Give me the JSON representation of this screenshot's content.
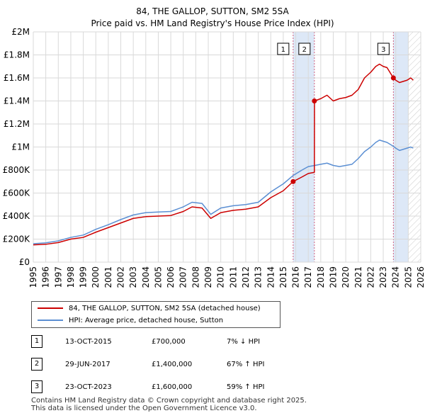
{
  "chart_data": {
    "type": "line",
    "title": "84, THE GALLOP, SUTTON, SM2 5SA",
    "subtitle": "Price paid vs. HM Land Registry's House Price Index (HPI)",
    "xlim": [
      1995,
      2026
    ],
    "ylim": [
      0,
      2000000
    ],
    "x_ticks": [
      1995,
      1996,
      1997,
      1998,
      1999,
      2000,
      2001,
      2002,
      2003,
      2004,
      2005,
      2006,
      2007,
      2008,
      2009,
      2010,
      2011,
      2012,
      2013,
      2014,
      2015,
      2016,
      2017,
      2018,
      2019,
      2020,
      2021,
      2022,
      2023,
      2024,
      2025,
      2026
    ],
    "y_ticks": [
      {
        "value": 0,
        "label": "£0"
      },
      {
        "value": 200000,
        "label": "£200K"
      },
      {
        "value": 400000,
        "label": "£400K"
      },
      {
        "value": 600000,
        "label": "£600K"
      },
      {
        "value": 800000,
        "label": "£800K"
      },
      {
        "value": 1000000,
        "label": "£1M"
      },
      {
        "value": 1200000,
        "label": "£1.2M"
      },
      {
        "value": 1400000,
        "label": "£1.4M"
      },
      {
        "value": 1600000,
        "label": "£1.6M"
      },
      {
        "value": 1800000,
        "label": "£1.8M"
      },
      {
        "value": 2000000,
        "label": "£2M"
      }
    ],
    "grid": true,
    "series": [
      {
        "name": "84, THE GALLOP, SUTTON, SM2 5SA (detached house)",
        "color": "#cc0000",
        "x": [
          1995.0,
          1996.0,
          1997.0,
          1998.0,
          1999.0,
          2000.0,
          2001.0,
          2002.0,
          2003.0,
          2004.0,
          2005.0,
          2006.0,
          2007.0,
          2007.7,
          2008.5,
          2009.2,
          2010.0,
          2011.0,
          2012.0,
          2013.0,
          2014.0,
          2015.0,
          2015.79,
          2016.5,
          2017.0,
          2017.49,
          2017.5,
          2018.0,
          2018.5,
          2019.0,
          2019.5,
          2020.0,
          2020.5,
          2021.0,
          2021.5,
          2022.0,
          2022.4,
          2022.7,
          2023.0,
          2023.3,
          2023.81,
          2024.0,
          2024.3,
          2024.6,
          2024.9,
          2025.2,
          2025.4
        ],
        "values": [
          150000,
          155000,
          170000,
          200000,
          215000,
          260000,
          300000,
          340000,
          380000,
          395000,
          400000,
          405000,
          440000,
          480000,
          470000,
          380000,
          430000,
          450000,
          460000,
          480000,
          560000,
          620000,
          700000,
          740000,
          770000,
          780000,
          1400000,
          1420000,
          1450000,
          1400000,
          1420000,
          1430000,
          1450000,
          1500000,
          1600000,
          1650000,
          1700000,
          1720000,
          1700000,
          1690000,
          1600000,
          1580000,
          1560000,
          1570000,
          1580000,
          1600000,
          1580000
        ]
      },
      {
        "name": "HPI: Average price, detached house, Sutton",
        "color": "#5b8fd3",
        "x": [
          1995.0,
          1996.0,
          1997.0,
          1998.0,
          1999.0,
          2000.0,
          2001.0,
          2002.0,
          2003.0,
          2004.0,
          2005.0,
          2006.0,
          2007.0,
          2007.7,
          2008.5,
          2009.2,
          2010.0,
          2011.0,
          2012.0,
          2013.0,
          2014.0,
          2015.0,
          2015.79,
          2016.5,
          2017.0,
          2017.49,
          2018.0,
          2018.5,
          2019.0,
          2019.5,
          2020.0,
          2020.5,
          2021.0,
          2021.5,
          2022.0,
          2022.4,
          2022.7,
          2023.0,
          2023.3,
          2023.81,
          2024.0,
          2024.3,
          2024.6,
          2024.9,
          2025.2,
          2025.4
        ],
        "values": [
          160000,
          168000,
          185000,
          215000,
          235000,
          285000,
          325000,
          370000,
          410000,
          430000,
          435000,
          440000,
          480000,
          520000,
          510000,
          415000,
          470000,
          490000,
          500000,
          520000,
          610000,
          680000,
          752688,
          800000,
          830000,
          839000,
          850000,
          860000,
          840000,
          830000,
          840000,
          850000,
          900000,
          960000,
          1000000,
          1040000,
          1060000,
          1050000,
          1040000,
          1006289,
          990000,
          970000,
          980000,
          990000,
          1000000,
          990000
        ]
      }
    ],
    "sales": [
      {
        "id": "1",
        "date": "13-OCT-2015",
        "year": 2015.79,
        "price": 700000,
        "price_label": "£700,000",
        "hpi": "7% ↓ HPI"
      },
      {
        "id": "2",
        "date": "29-JUN-2017",
        "year": 2017.49,
        "price": 1400000,
        "price_label": "£1,400,000",
        "hpi": "67% ↑ HPI"
      },
      {
        "id": "3",
        "date": "23-OCT-2023",
        "year": 2023.81,
        "price": 1600000,
        "price_label": "£1,600,000",
        "hpi": "59% ↑ HPI"
      }
    ],
    "shaded_periods": [
      [
        2015.79,
        2017.49
      ],
      [
        2023.81,
        2024.99
      ]
    ],
    "hatched_after": 2025.0,
    "colors": {
      "sale_band": "#dde8f7",
      "grid": "#d9d9d9",
      "sale_line": "#d06080"
    }
  },
  "legend": {
    "red_label": "84, THE GALLOP, SUTTON, SM2 5SA (detached house)",
    "blue_label": "HPI: Average price, detached house, Sutton"
  },
  "footer": {
    "line1": "Contains HM Land Registry data © Crown copyright and database right 2025.",
    "line2": "This data is licensed under the Open Government Licence v3.0."
  }
}
